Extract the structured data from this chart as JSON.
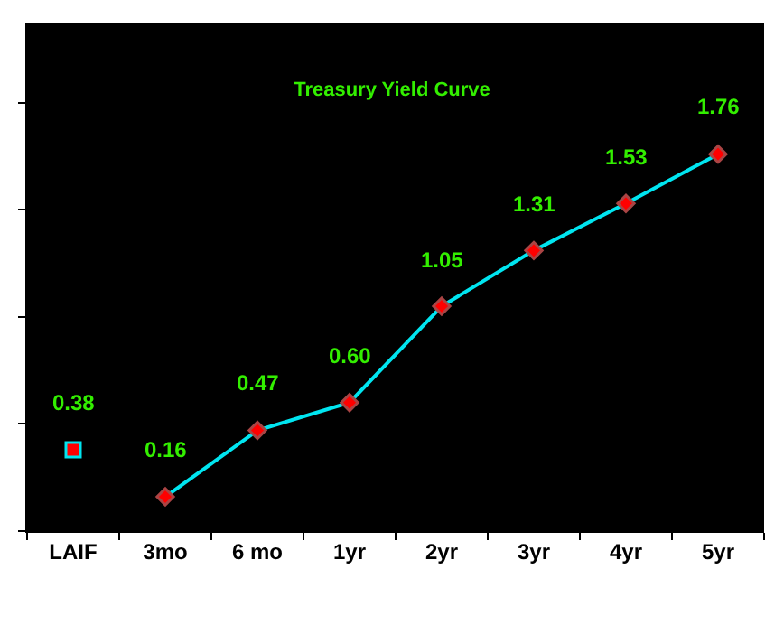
{
  "chart_data": {
    "type": "line",
    "title": "Treasury Yield Curve",
    "categories": [
      "LAIF",
      "3mo",
      "6 mo",
      "1yr",
      "2yr",
      "3yr",
      "4yr",
      "5yr"
    ],
    "series": [
      {
        "type": "scatter",
        "marker": "square",
        "color": "#ff0000",
        "values": [
          0.38,
          null,
          null,
          null,
          null,
          null,
          null,
          null
        ],
        "value_labels": [
          "0.38",
          null,
          null,
          null,
          null,
          null,
          null,
          null
        ]
      },
      {
        "marker": "diamond",
        "color": "#00e5f0",
        "values": [
          null,
          0.16,
          0.47,
          0.6,
          1.05,
          1.31,
          1.53,
          1.76
        ],
        "value_labels": [
          null,
          "0.16",
          "0.47",
          "0.60",
          "1.05",
          "1.31",
          "1.53",
          "1.76"
        ]
      }
    ],
    "ylim": [
      0,
      2.37
    ],
    "yticks": [
      {
        "value": 0,
        "label": null
      },
      {
        "value": 0.5,
        "label": null
      },
      {
        "value": 1,
        "label": null
      },
      {
        "value": 1.5,
        "label": null
      },
      {
        "value": 2,
        "label": null
      }
    ],
    "tick_labels": "x",
    "grid": false
  }
}
